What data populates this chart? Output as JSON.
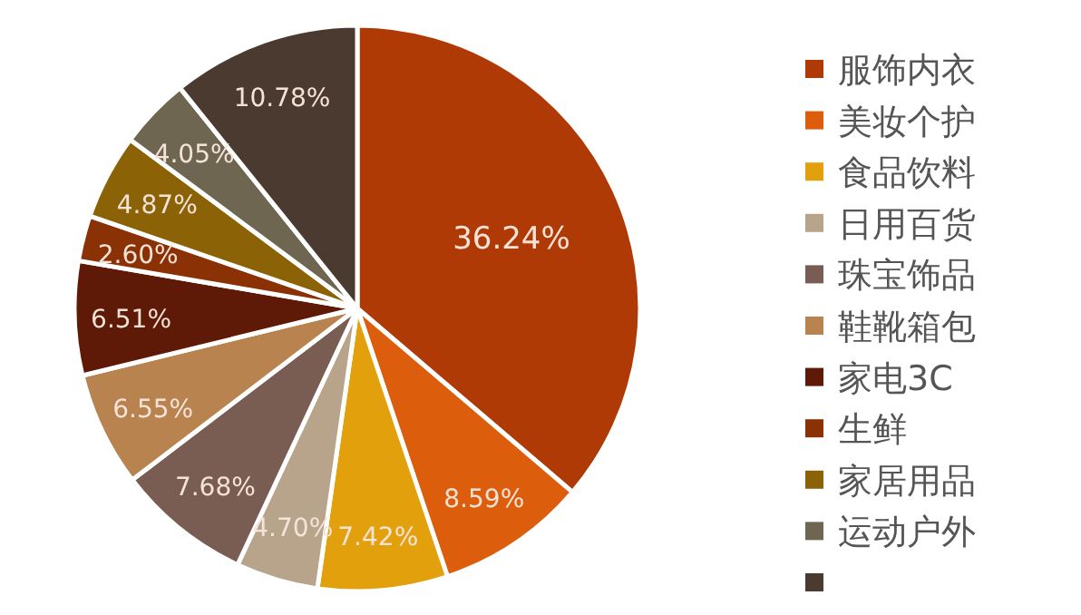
{
  "chart_data": {
    "type": "pie",
    "categories": [
      "服饰内衣",
      "美妆个护",
      "食品饮料",
      "日用百货",
      "珠宝饰品",
      "鞋靴箱包",
      "家电3C",
      "生鲜",
      "家居用品",
      "运动户外",
      null
    ],
    "values": [
      36.24,
      8.59,
      7.42,
      4.7,
      7.68,
      6.55,
      6.51,
      2.6,
      4.87,
      4.05,
      10.78
    ],
    "value_labels": [
      "36.24%",
      "8.59%",
      "7.42%",
      "4.70%",
      "7.68%",
      "6.55%",
      "6.51%",
      "2.60%",
      "4.87%",
      "4.05%",
      "10.78%"
    ],
    "colors": [
      "#b03a05",
      "#dc5e0c",
      "#e2a00c",
      "#b8a48a",
      "#7a5d52",
      "#b8834e",
      "#5e1a06",
      "#8a3206",
      "#8c6206",
      "#6e6650",
      "#4a3a30"
    ],
    "legend": "right"
  }
}
